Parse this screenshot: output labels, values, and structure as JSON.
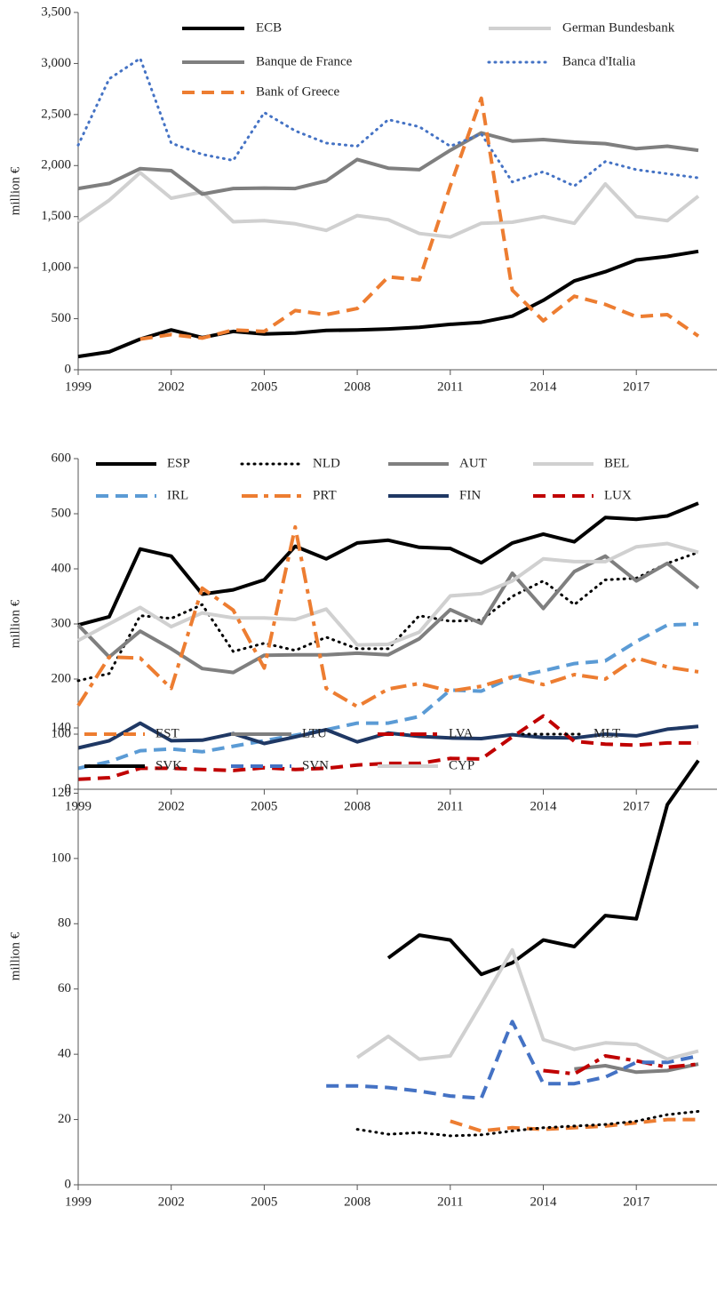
{
  "chart_data": [
    {
      "type": "line",
      "y_label": "million €",
      "x": [
        1999,
        2000,
        2001,
        2002,
        2003,
        2004,
        2005,
        2006,
        2007,
        2008,
        2009,
        2010,
        2011,
        2012,
        2013,
        2014,
        2015,
        2016,
        2017,
        2018,
        2019
      ],
      "xlim": [
        1999,
        2019
      ],
      "xticks": [
        1999,
        2002,
        2005,
        2008,
        2011,
        2014,
        2017
      ],
      "ylim": [
        0,
        3500
      ],
      "yticks": [
        0,
        500,
        {
          "value": 1000,
          "label": "1,000"
        },
        {
          "value": 1500,
          "label": "1,500"
        },
        {
          "value": 2000,
          "label": "2,000"
        },
        {
          "value": 2500,
          "label": "2,500"
        },
        {
          "value": 3000,
          "label": "3,000"
        },
        {
          "value": 3500,
          "label": "3,500"
        }
      ],
      "series": [
        {
          "name": "ECB",
          "color": "#000000",
          "style": "solid",
          "values": [
            130,
            175,
            300,
            390,
            315,
            375,
            350,
            360,
            385,
            390,
            400,
            415,
            445,
            465,
            525,
            680,
            870,
            960,
            1075,
            1110,
            1160
          ]
        },
        {
          "name": "German Bundesbank",
          "color": "#d0d0d0",
          "style": "solid",
          "values": [
            1450,
            1660,
            1930,
            1680,
            1740,
            1450,
            1460,
            1430,
            1365,
            1510,
            1470,
            1335,
            1300,
            1435,
            1445,
            1500,
            1435,
            1820,
            1500,
            1460,
            1700
          ]
        },
        {
          "name": "Banque de France",
          "color": "#7f7f7f",
          "style": "solid",
          "values": [
            1775,
            1825,
            1970,
            1950,
            1720,
            1775,
            1780,
            1775,
            1850,
            2060,
            1975,
            1960,
            2150,
            2320,
            2240,
            2255,
            2230,
            2215,
            2165,
            2190,
            2150
          ]
        },
        {
          "name": "Banca d'Italia",
          "color": "#4472c4",
          "style": "dotted",
          "values": [
            2200,
            2850,
            3050,
            2220,
            2110,
            2050,
            2520,
            2340,
            2220,
            2190,
            2450,
            2380,
            2190,
            2310,
            1840,
            1940,
            1800,
            2040,
            1960,
            1920,
            1880
          ]
        },
        {
          "name": "Bank of Greece",
          "color": "#ed7d31",
          "style": "dashed",
          "values": [
            null,
            null,
            300,
            345,
            310,
            390,
            375,
            580,
            540,
            600,
            910,
            880,
            1800,
            2660,
            780,
            480,
            720,
            640,
            520,
            540,
            330
          ]
        }
      ]
    },
    {
      "type": "line",
      "y_label": "million €",
      "x": [
        1999,
        2000,
        2001,
        2002,
        2003,
        2004,
        2005,
        2006,
        2007,
        2008,
        2009,
        2010,
        2011,
        2012,
        2013,
        2014,
        2015,
        2016,
        2017,
        2018,
        2019
      ],
      "xlim": [
        1999,
        2019
      ],
      "xticks": [
        1999,
        2002,
        2005,
        2008,
        2011,
        2014,
        2017
      ],
      "ylim": [
        0,
        600
      ],
      "yticks": [
        0,
        100,
        200,
        300,
        400,
        500,
        600
      ],
      "series": [
        {
          "name": "ESP",
          "color": "#000000",
          "style": "solid",
          "values": [
            298,
            313,
            436,
            423,
            354,
            362,
            380,
            441,
            418,
            447,
            452,
            439,
            437,
            411,
            447,
            463,
            449,
            493,
            490,
            496,
            519
          ]
        },
        {
          "name": "NLD",
          "color": "#000000",
          "style": "dotted",
          "values": [
            197,
            210,
            315,
            310,
            335,
            250,
            265,
            252,
            276,
            255,
            255,
            315,
            305,
            307,
            350,
            378,
            335,
            380,
            383,
            410,
            430
          ]
        },
        {
          "name": "AUT",
          "color": "#7f7f7f",
          "style": "solid",
          "values": [
            298,
            240,
            287,
            255,
            219,
            212,
            243,
            244,
            244,
            247,
            244,
            273,
            326,
            301,
            392,
            328,
            395,
            423,
            378,
            410,
            365
          ]
        },
        {
          "name": "BEL",
          "color": "#d0d0d0",
          "style": "solid",
          "values": [
            270,
            300,
            330,
            295,
            320,
            311,
            311,
            308,
            327,
            262,
            263,
            285,
            351,
            355,
            378,
            418,
            413,
            413,
            440,
            446,
            430
          ]
        },
        {
          "name": "IRL",
          "color": "#5b9bd5",
          "style": "dashed",
          "values": [
            38,
            50,
            70,
            73,
            68,
            78,
            88,
            98,
            108,
            120,
            120,
            132,
            180,
            178,
            203,
            215,
            228,
            233,
            268,
            298,
            300
          ]
        },
        {
          "name": "PRT",
          "color": "#ed7d31",
          "style": "dashdot",
          "values": [
            152,
            240,
            238,
            183,
            365,
            325,
            220,
            476,
            183,
            150,
            182,
            192,
            178,
            187,
            204,
            190,
            208,
            200,
            238,
            222,
            213
          ]
        },
        {
          "name": "FIN",
          "color": "#1f3864",
          "style": "solid",
          "values": [
            75,
            88,
            120,
            88,
            89,
            101,
            83,
            95,
            108,
            86,
            102,
            96,
            93,
            92,
            99,
            94,
            93,
            100,
            97,
            109,
            114
          ]
        },
        {
          "name": "LUX",
          "color": "#c00000",
          "style": "dashed",
          "values": [
            18,
            21,
            38,
            38,
            36,
            34,
            39,
            36,
            38,
            44,
            47,
            47,
            56,
            55,
            95,
            133,
            87,
            82,
            80,
            84,
            84
          ]
        }
      ]
    },
    {
      "type": "line",
      "y_label": "million €",
      "x": [
        1999,
        2000,
        2001,
        2002,
        2003,
        2004,
        2005,
        2006,
        2007,
        2008,
        2009,
        2010,
        2011,
        2012,
        2013,
        2014,
        2015,
        2016,
        2017,
        2018,
        2019
      ],
      "xlim": [
        1999,
        2019
      ],
      "xticks": [
        1999,
        2002,
        2005,
        2008,
        2011,
        2014,
        2017
      ],
      "ylim": [
        0,
        140
      ],
      "yticks": [
        0,
        20,
        40,
        60,
        80,
        100,
        120,
        140
      ],
      "series": [
        {
          "name": "EST",
          "color": "#ed7d31",
          "style": "dashed",
          "values": [
            null,
            null,
            null,
            null,
            null,
            null,
            null,
            null,
            null,
            null,
            null,
            null,
            19.5,
            16.5,
            17.5,
            17,
            17.5,
            18,
            19,
            20,
            20
          ]
        },
        {
          "name": "LTU",
          "color": "#7f7f7f",
          "style": "solid",
          "values": [
            null,
            null,
            null,
            null,
            null,
            null,
            null,
            null,
            null,
            null,
            null,
            null,
            null,
            null,
            null,
            null,
            35.5,
            36.5,
            34.5,
            35,
            37
          ]
        },
        {
          "name": "LVA",
          "color": "#c00000",
          "style": "dashdot",
          "values": [
            null,
            null,
            null,
            null,
            null,
            null,
            null,
            null,
            null,
            null,
            null,
            null,
            null,
            null,
            null,
            35,
            34,
            39.5,
            38,
            36,
            37
          ]
        },
        {
          "name": "MLT",
          "color": "#000000",
          "style": "dotted",
          "values": [
            null,
            null,
            null,
            null,
            null,
            null,
            null,
            null,
            null,
            17,
            15.5,
            16,
            15,
            15.3,
            16.5,
            17.5,
            18,
            18.5,
            19.5,
            21.5,
            22.5
          ]
        },
        {
          "name": "SVK",
          "color": "#000000",
          "style": "solid",
          "values": [
            null,
            null,
            null,
            null,
            null,
            null,
            null,
            null,
            null,
            null,
            69.5,
            76.5,
            75,
            64.5,
            68,
            75,
            73,
            82.5,
            81.5,
            116.5,
            130
          ]
        },
        {
          "name": "SVN",
          "color": "#4472c4",
          "style": "dashed",
          "values": [
            null,
            null,
            null,
            null,
            null,
            null,
            null,
            null,
            30.3,
            30.3,
            29.8,
            28.7,
            27.2,
            26.5,
            50,
            31,
            31,
            33,
            37.5,
            37.5,
            39.5
          ]
        },
        {
          "name": "CYP",
          "color": "#d0d0d0",
          "style": "solid",
          "values": [
            null,
            null,
            null,
            null,
            null,
            null,
            null,
            null,
            null,
            39,
            45.5,
            38.5,
            39.5,
            55.5,
            72,
            44.5,
            41.5,
            43.5,
            43,
            38.5,
            41
          ]
        }
      ]
    }
  ]
}
